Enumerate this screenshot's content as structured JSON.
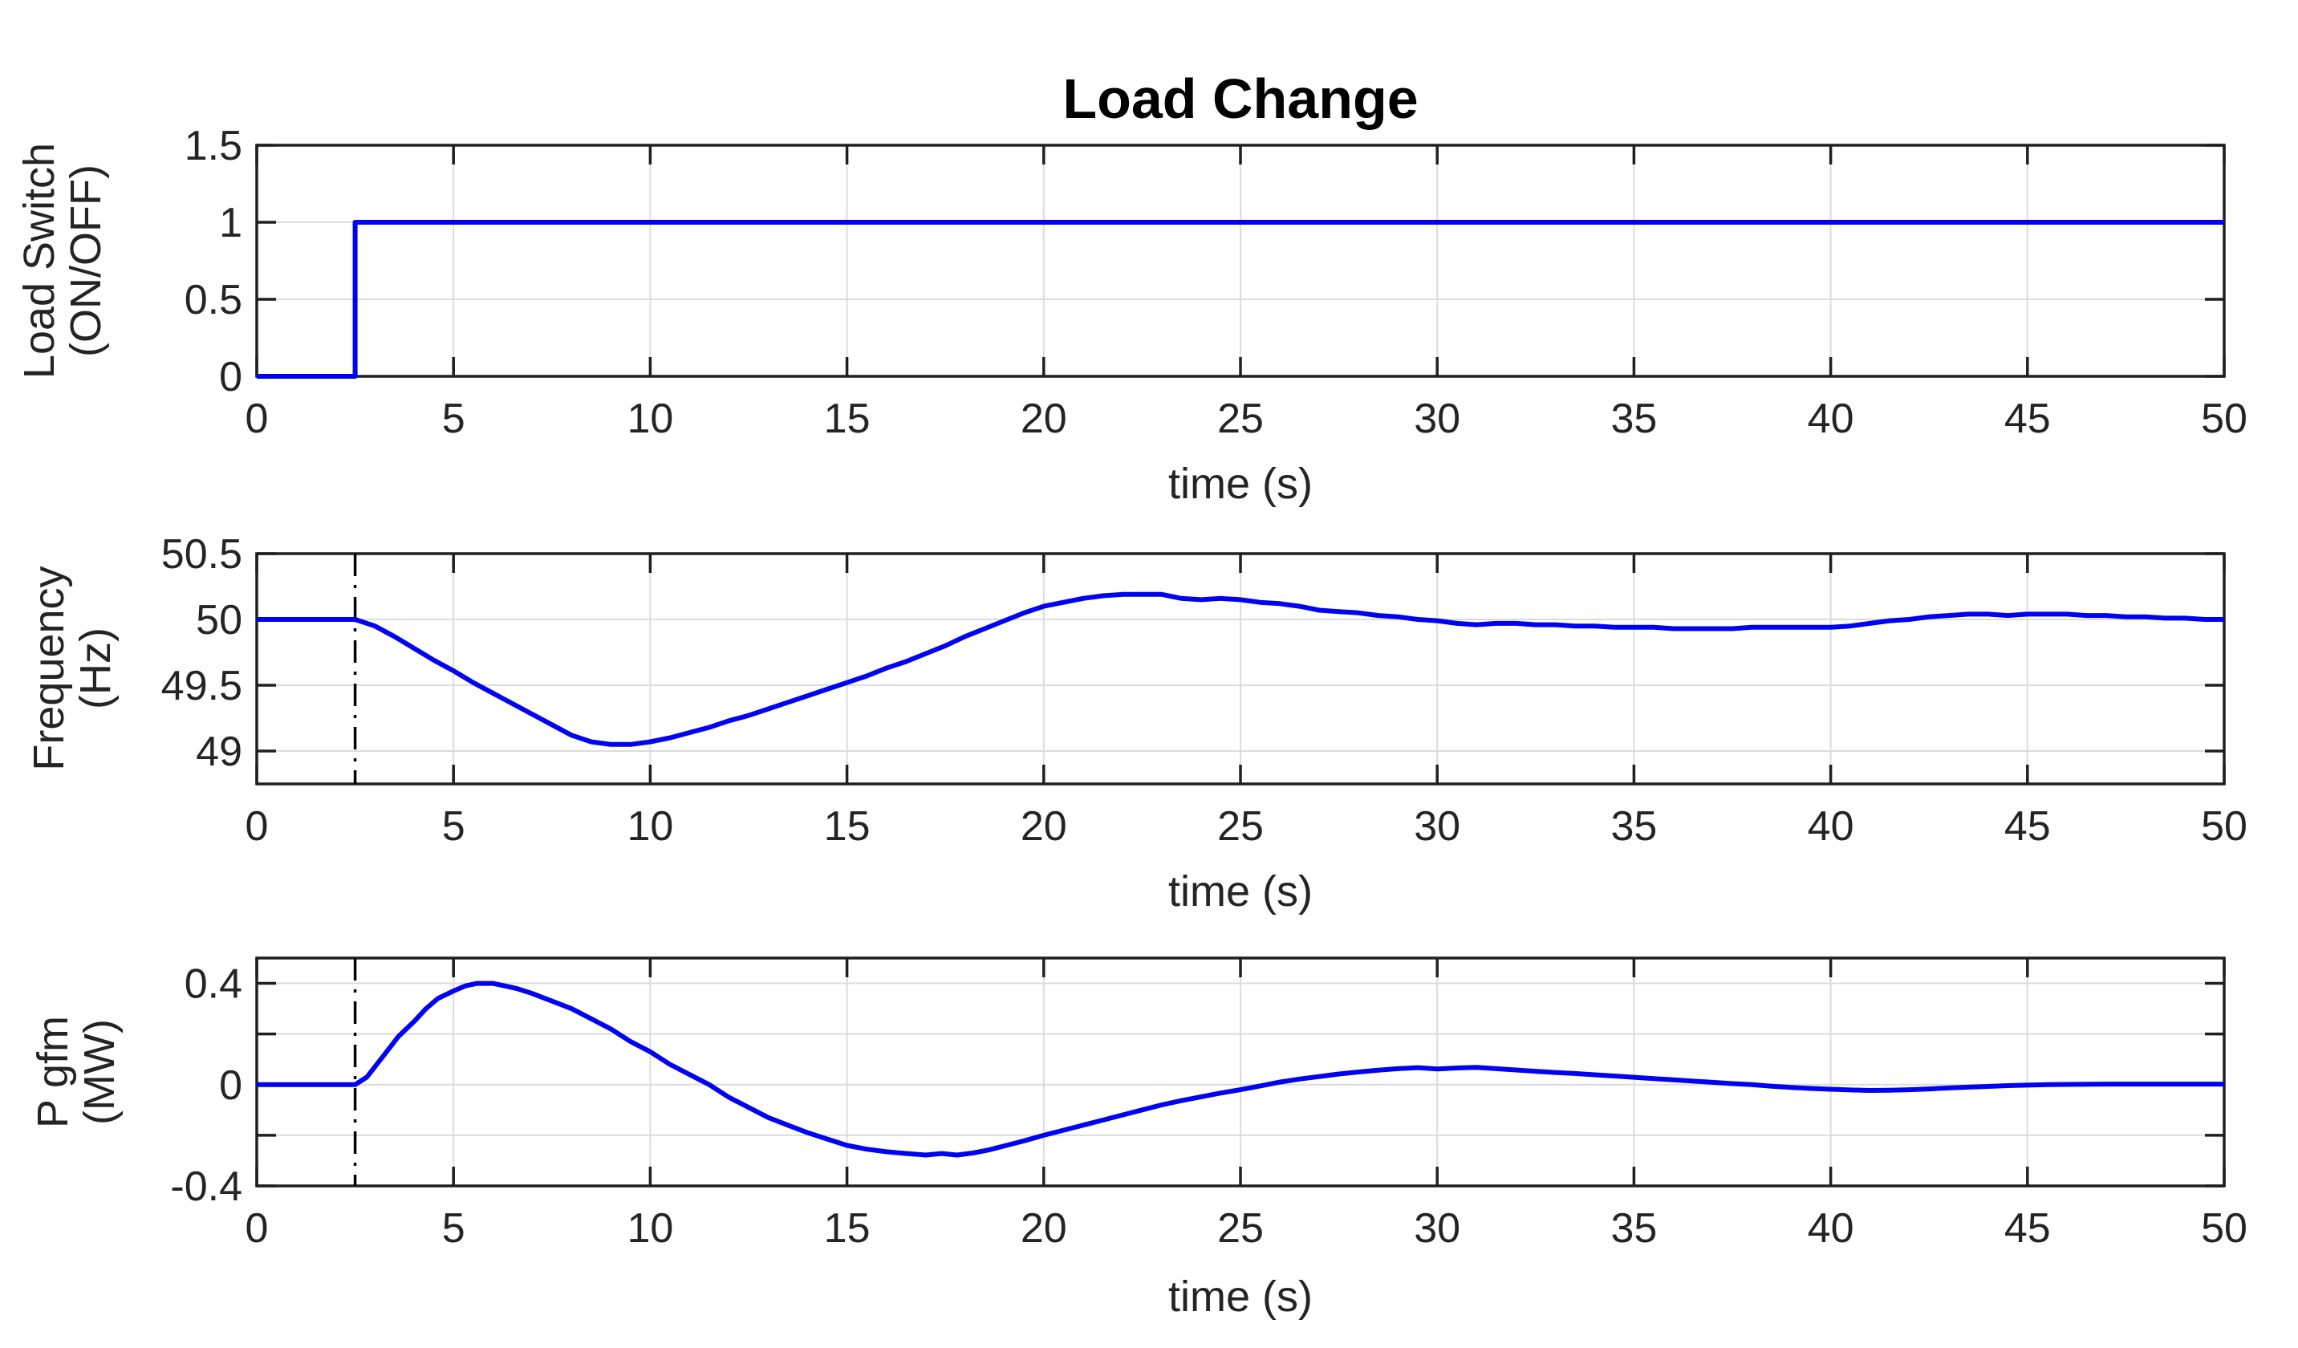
{
  "figure": {
    "title": "Load Change"
  },
  "colors": {
    "line_blue": "#0000f2",
    "event_line": "#000000",
    "grid": "#dcdcdc",
    "axis": "#1f1f1f",
    "tick_label": "#242424",
    "label": "#242424",
    "title": "#000000",
    "background": "#ffffff"
  },
  "chart_data": [
    {
      "type": "line",
      "panel": "load-switch",
      "xlabel": "time (s)",
      "ylabel_lines": [
        "Load Switch",
        "(ON/OFF)"
      ],
      "xlim": [
        0,
        50
      ],
      "ylim": [
        0,
        1.5
      ],
      "grid": true,
      "legend": "none",
      "event_line_x": null,
      "xticks": [
        {
          "value": 0,
          "label": "0"
        },
        {
          "value": 5,
          "label": "5"
        },
        {
          "value": 10,
          "label": "10"
        },
        {
          "value": 15,
          "label": "15"
        },
        {
          "value": 20,
          "label": "20"
        },
        {
          "value": 25,
          "label": "25"
        },
        {
          "value": 30,
          "label": "30"
        },
        {
          "value": 35,
          "label": "35"
        },
        {
          "value": 40,
          "label": "40"
        },
        {
          "value": 45,
          "label": "45"
        },
        {
          "value": 50,
          "label": "50"
        }
      ],
      "ytick_marks": [
        0,
        0.5,
        1,
        1.5
      ],
      "yticks": [
        {
          "value": 0,
          "label": "0"
        },
        {
          "value": 0.5,
          "label": "0.5"
        },
        {
          "value": 1,
          "label": "1"
        },
        {
          "value": 1.5,
          "label": "1.5"
        }
      ],
      "series": [
        {
          "name": "Load Switch",
          "color": "#0000f2",
          "points": [
            [
              0,
              0
            ],
            [
              2.5,
              0
            ],
            [
              2.5,
              1
            ],
            [
              50,
              1
            ]
          ]
        }
      ]
    },
    {
      "type": "line",
      "panel": "frequency",
      "xlabel": "time (s)",
      "ylabel_lines": [
        "Frequency",
        "(Hz)"
      ],
      "xlim": [
        0,
        50
      ],
      "ylim": [
        48.75,
        50.5
      ],
      "grid": true,
      "legend": "none",
      "event_line_x": 2.5,
      "xticks": [
        {
          "value": 0,
          "label": "0"
        },
        {
          "value": 5,
          "label": "5"
        },
        {
          "value": 10,
          "label": "10"
        },
        {
          "value": 15,
          "label": "15"
        },
        {
          "value": 20,
          "label": "20"
        },
        {
          "value": 25,
          "label": "25"
        },
        {
          "value": 30,
          "label": "30"
        },
        {
          "value": 35,
          "label": "35"
        },
        {
          "value": 40,
          "label": "40"
        },
        {
          "value": 45,
          "label": "45"
        },
        {
          "value": 50,
          "label": "50"
        }
      ],
      "ytick_marks": [
        49,
        49.5,
        50,
        50.5
      ],
      "yticks": [
        {
          "value": 49,
          "label": "49"
        },
        {
          "value": 49.5,
          "label": "49.5"
        },
        {
          "value": 50,
          "label": "50"
        },
        {
          "value": 50.5,
          "label": "50.5"
        }
      ],
      "series": [
        {
          "name": "Frequency",
          "color": "#0000f2",
          "points": [
            [
              0,
              50
            ],
            [
              0.5,
              50
            ],
            [
              1,
              50
            ],
            [
              1.5,
              50
            ],
            [
              2,
              50
            ],
            [
              2.5,
              50
            ],
            [
              3,
              49.95
            ],
            [
              3.5,
              49.87
            ],
            [
              4,
              49.78
            ],
            [
              4.5,
              49.69
            ],
            [
              5,
              49.61
            ],
            [
              5.5,
              49.52
            ],
            [
              6,
              49.44
            ],
            [
              6.5,
              49.36
            ],
            [
              7,
              49.28
            ],
            [
              7.5,
              49.2
            ],
            [
              8,
              49.12
            ],
            [
              8.5,
              49.07
            ],
            [
              9,
              49.05
            ],
            [
              9.5,
              49.05
            ],
            [
              10,
              49.07
            ],
            [
              10.5,
              49.1
            ],
            [
              11,
              49.14
            ],
            [
              11.5,
              49.18
            ],
            [
              12,
              49.23
            ],
            [
              12.5,
              49.27
            ],
            [
              13,
              49.32
            ],
            [
              13.5,
              49.37
            ],
            [
              14,
              49.42
            ],
            [
              14.5,
              49.47
            ],
            [
              15,
              49.52
            ],
            [
              15.5,
              49.57
            ],
            [
              16,
              49.63
            ],
            [
              16.5,
              49.68
            ],
            [
              17,
              49.74
            ],
            [
              17.5,
              49.8
            ],
            [
              18,
              49.87
            ],
            [
              18.5,
              49.93
            ],
            [
              19,
              49.99
            ],
            [
              19.5,
              50.05
            ],
            [
              20,
              50.1
            ],
            [
              20.5,
              50.13
            ],
            [
              21,
              50.16
            ],
            [
              21.5,
              50.18
            ],
            [
              22,
              50.19
            ],
            [
              22.5,
              50.19
            ],
            [
              23,
              50.19
            ],
            [
              23.5,
              50.16
            ],
            [
              24,
              50.15
            ],
            [
              24.5,
              50.16
            ],
            [
              25,
              50.15
            ],
            [
              25.5,
              50.13
            ],
            [
              26,
              50.12
            ],
            [
              26.5,
              50.1
            ],
            [
              27,
              50.07
            ],
            [
              27.5,
              50.06
            ],
            [
              28,
              50.05
            ],
            [
              28.5,
              50.03
            ],
            [
              29,
              50.02
            ],
            [
              29.5,
              50
            ],
            [
              30,
              49.99
            ],
            [
              30.5,
              49.97
            ],
            [
              31,
              49.96
            ],
            [
              31.5,
              49.97
            ],
            [
              32,
              49.97
            ],
            [
              32.5,
              49.96
            ],
            [
              33,
              49.96
            ],
            [
              33.5,
              49.95
            ],
            [
              34,
              49.95
            ],
            [
              34.5,
              49.94
            ],
            [
              35,
              49.94
            ],
            [
              35.5,
              49.94
            ],
            [
              36,
              49.93
            ],
            [
              36.5,
              49.93
            ],
            [
              37,
              49.93
            ],
            [
              37.5,
              49.93
            ],
            [
              38,
              49.94
            ],
            [
              38.5,
              49.94
            ],
            [
              39,
              49.94
            ],
            [
              39.5,
              49.94
            ],
            [
              40,
              49.94
            ],
            [
              40.5,
              49.95
            ],
            [
              41,
              49.97
            ],
            [
              41.5,
              49.99
            ],
            [
              42,
              50
            ],
            [
              42.5,
              50.02
            ],
            [
              43,
              50.03
            ],
            [
              43.5,
              50.04
            ],
            [
              44,
              50.04
            ],
            [
              44.5,
              50.03
            ],
            [
              45,
              50.04
            ],
            [
              45.5,
              50.04
            ],
            [
              46,
              50.04
            ],
            [
              46.5,
              50.03
            ],
            [
              47,
              50.03
            ],
            [
              47.5,
              50.02
            ],
            [
              48,
              50.02
            ],
            [
              48.5,
              50.01
            ],
            [
              49,
              50.01
            ],
            [
              49.5,
              50
            ],
            [
              50,
              50
            ]
          ]
        }
      ]
    },
    {
      "type": "line",
      "panel": "p-gfm",
      "xlabel": "time (s)",
      "ylabel_lines": [
        "P gfm",
        "(MW)"
      ],
      "xlim": [
        0,
        50
      ],
      "ylim": [
        -0.4,
        0.5
      ],
      "grid": true,
      "legend": "none",
      "event_line_x": 2.5,
      "xticks": [
        {
          "value": 0,
          "label": "0"
        },
        {
          "value": 5,
          "label": "5"
        },
        {
          "value": 10,
          "label": "10"
        },
        {
          "value": 15,
          "label": "15"
        },
        {
          "value": 20,
          "label": "20"
        },
        {
          "value": 25,
          "label": "25"
        },
        {
          "value": 30,
          "label": "30"
        },
        {
          "value": 35,
          "label": "35"
        },
        {
          "value": 40,
          "label": "40"
        },
        {
          "value": 45,
          "label": "45"
        },
        {
          "value": 50,
          "label": "50"
        }
      ],
      "ytick_marks": [
        -0.4,
        -0.2,
        0,
        0.2,
        0.4
      ],
      "yticks": [
        {
          "value": -0.4,
          "label": "-0.4"
        },
        {
          "value": 0,
          "label": "0"
        },
        {
          "value": 0.4,
          "label": "0.4"
        }
      ],
      "series": [
        {
          "name": "P gfm",
          "color": "#0000f2",
          "points": [
            [
              0,
              0
            ],
            [
              0.5,
              0
            ],
            [
              1,
              0
            ],
            [
              1.5,
              0
            ],
            [
              2,
              0
            ],
            [
              2.5,
              0
            ],
            [
              2.8,
              0.03
            ],
            [
              3,
              0.07
            ],
            [
              3.3,
              0.13
            ],
            [
              3.6,
              0.19
            ],
            [
              4,
              0.25
            ],
            [
              4.3,
              0.3
            ],
            [
              4.6,
              0.34
            ],
            [
              5,
              0.37
            ],
            [
              5.3,
              0.39
            ],
            [
              5.6,
              0.4
            ],
            [
              6,
              0.4
            ],
            [
              6.3,
              0.39
            ],
            [
              6.6,
              0.38
            ],
            [
              7,
              0.36
            ],
            [
              7.5,
              0.33
            ],
            [
              8,
              0.3
            ],
            [
              8.5,
              0.26
            ],
            [
              9,
              0.22
            ],
            [
              9.5,
              0.17
            ],
            [
              10,
              0.13
            ],
            [
              10.5,
              0.08
            ],
            [
              11,
              0.04
            ],
            [
              11.5,
              0
            ],
            [
              12,
              -0.05
            ],
            [
              12.5,
              -0.09
            ],
            [
              13,
              -0.13
            ],
            [
              13.5,
              -0.16
            ],
            [
              14,
              -0.19
            ],
            [
              14.5,
              -0.215
            ],
            [
              15,
              -0.24
            ],
            [
              15.5,
              -0.255
            ],
            [
              16,
              -0.265
            ],
            [
              16.5,
              -0.272
            ],
            [
              17,
              -0.278
            ],
            [
              17.4,
              -0.272
            ],
            [
              17.8,
              -0.278
            ],
            [
              18.2,
              -0.27
            ],
            [
              18.6,
              -0.258
            ],
            [
              19,
              -0.242
            ],
            [
              19.5,
              -0.222
            ],
            [
              20,
              -0.2
            ],
            [
              20.5,
              -0.18
            ],
            [
              21,
              -0.16
            ],
            [
              21.5,
              -0.14
            ],
            [
              22,
              -0.12
            ],
            [
              22.5,
              -0.1
            ],
            [
              23,
              -0.08
            ],
            [
              23.5,
              -0.063
            ],
            [
              24,
              -0.048
            ],
            [
              24.5,
              -0.033
            ],
            [
              25,
              -0.02
            ],
            [
              25.5,
              -0.005
            ],
            [
              26,
              0.01
            ],
            [
              26.5,
              0.022
            ],
            [
              27,
              0.032
            ],
            [
              27.5,
              0.042
            ],
            [
              28,
              0.05
            ],
            [
              28.5,
              0.057
            ],
            [
              29,
              0.063
            ],
            [
              29.5,
              0.067
            ],
            [
              30,
              0.062
            ],
            [
              30.5,
              0.066
            ],
            [
              31,
              0.068
            ],
            [
              31.5,
              0.063
            ],
            [
              32,
              0.058
            ],
            [
              32.5,
              0.053
            ],
            [
              33,
              0.048
            ],
            [
              33.5,
              0.044
            ],
            [
              34,
              0.039
            ],
            [
              34.5,
              0.034
            ],
            [
              35,
              0.029
            ],
            [
              35.5,
              0.024
            ],
            [
              36,
              0.019
            ],
            [
              36.5,
              0.014
            ],
            [
              37,
              0.009
            ],
            [
              37.5,
              0.004
            ],
            [
              38,
              0
            ],
            [
              38.5,
              -0.006
            ],
            [
              39,
              -0.011
            ],
            [
              39.5,
              -0.015
            ],
            [
              40,
              -0.018
            ],
            [
              40.5,
              -0.021
            ],
            [
              41,
              -0.023
            ],
            [
              41.5,
              -0.022
            ],
            [
              42,
              -0.02
            ],
            [
              42.5,
              -0.017
            ],
            [
              43,
              -0.013
            ],
            [
              43.5,
              -0.01
            ],
            [
              44,
              -0.007
            ],
            [
              44.5,
              -0.004
            ],
            [
              45,
              -0.002
            ],
            [
              45.5,
              0
            ],
            [
              46,
              0.001
            ],
            [
              47,
              0.002
            ],
            [
              48,
              0.002
            ],
            [
              49,
              0.002
            ],
            [
              50,
              0.002
            ]
          ]
        }
      ]
    }
  ]
}
